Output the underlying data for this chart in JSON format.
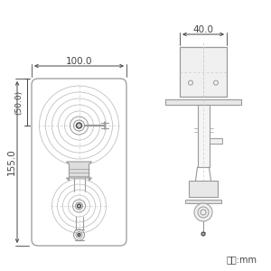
{
  "bg_color": "#ffffff",
  "line_color": "#999999",
  "dark_line_color": "#444444",
  "center_line_color": "#bbbbbb",
  "unit_text": "単位:mm",
  "dim_100": "100.0",
  "dim_50": "(50.0)",
  "dim_155": "155.0",
  "dim_40": "40.0"
}
